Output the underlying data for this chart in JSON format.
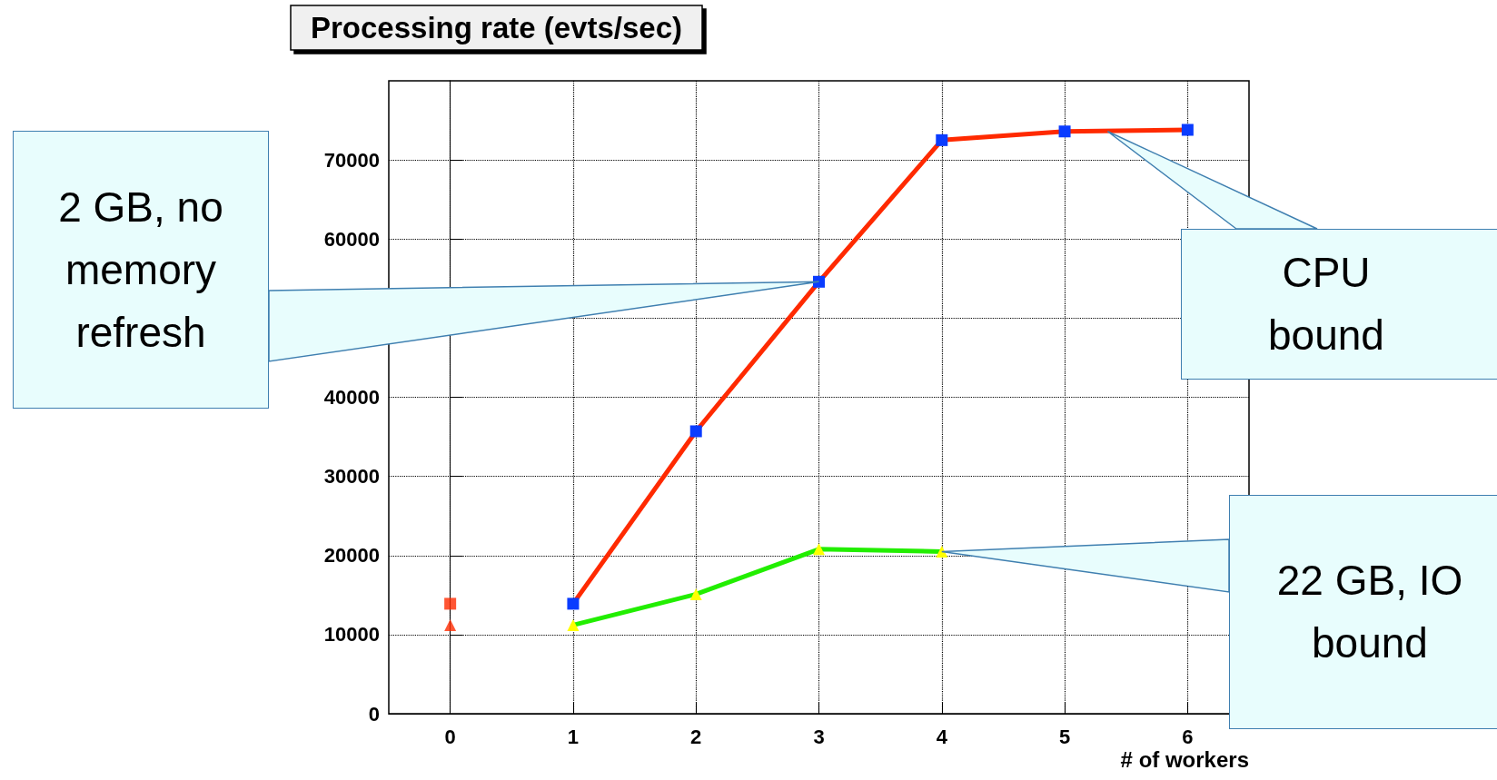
{
  "chart_data": {
    "type": "line",
    "title": "Processing rate (evts/sec)",
    "xlabel": "# of workers",
    "x": [
      1,
      2,
      3,
      4,
      5,
      6
    ],
    "series": [
      {
        "color": "#ff2a00",
        "colors": [
          "#0a3cff",
          "#0a3cff",
          "#0a3cff",
          "#0a3cff",
          "#0a3cff",
          "#0a3cff"
        ],
        "marker": "square",
        "values": [
          13900,
          35700,
          54600,
          72500,
          73600,
          73800
        ]
      },
      {
        "color": "#22ee00",
        "colors": [
          "#ffff00",
          "#ffff00",
          "#ffff00",
          "#ffff00"
        ],
        "marker": "triangle",
        "x": [
          1,
          2,
          3,
          4
        ],
        "values": [
          11200,
          15100,
          20800,
          20500
        ]
      },
      {
        "type": "scatter",
        "color": "#ff2a00",
        "marker": "square",
        "x": [
          0
        ],
        "values": [
          13900
        ]
      },
      {
        "type": "scatter",
        "color": "#ff2a00",
        "marker": "triangle",
        "x": [
          0
        ],
        "values": [
          11200
        ]
      }
    ],
    "xlim": [
      -0.5,
      6.5
    ],
    "xticks": [
      0,
      1,
      2,
      3,
      4,
      5,
      6
    ],
    "ylim": [
      0,
      80000
    ],
    "yticks": [
      0,
      10000,
      20000,
      30000,
      40000,
      {
        "value": 50000,
        "label": null
      },
      60000,
      70000
    ],
    "grid": true,
    "line_style": "solid",
    "annotations": [
      {
        "text": "2 GB, no memory refresh",
        "x": 3,
        "y": 54600
      },
      {
        "text": "CPU bound",
        "x": 5.35,
        "y": 73600
      },
      {
        "text": "22 GB, IO bound",
        "x": 4,
        "y": 20500
      }
    ]
  }
}
